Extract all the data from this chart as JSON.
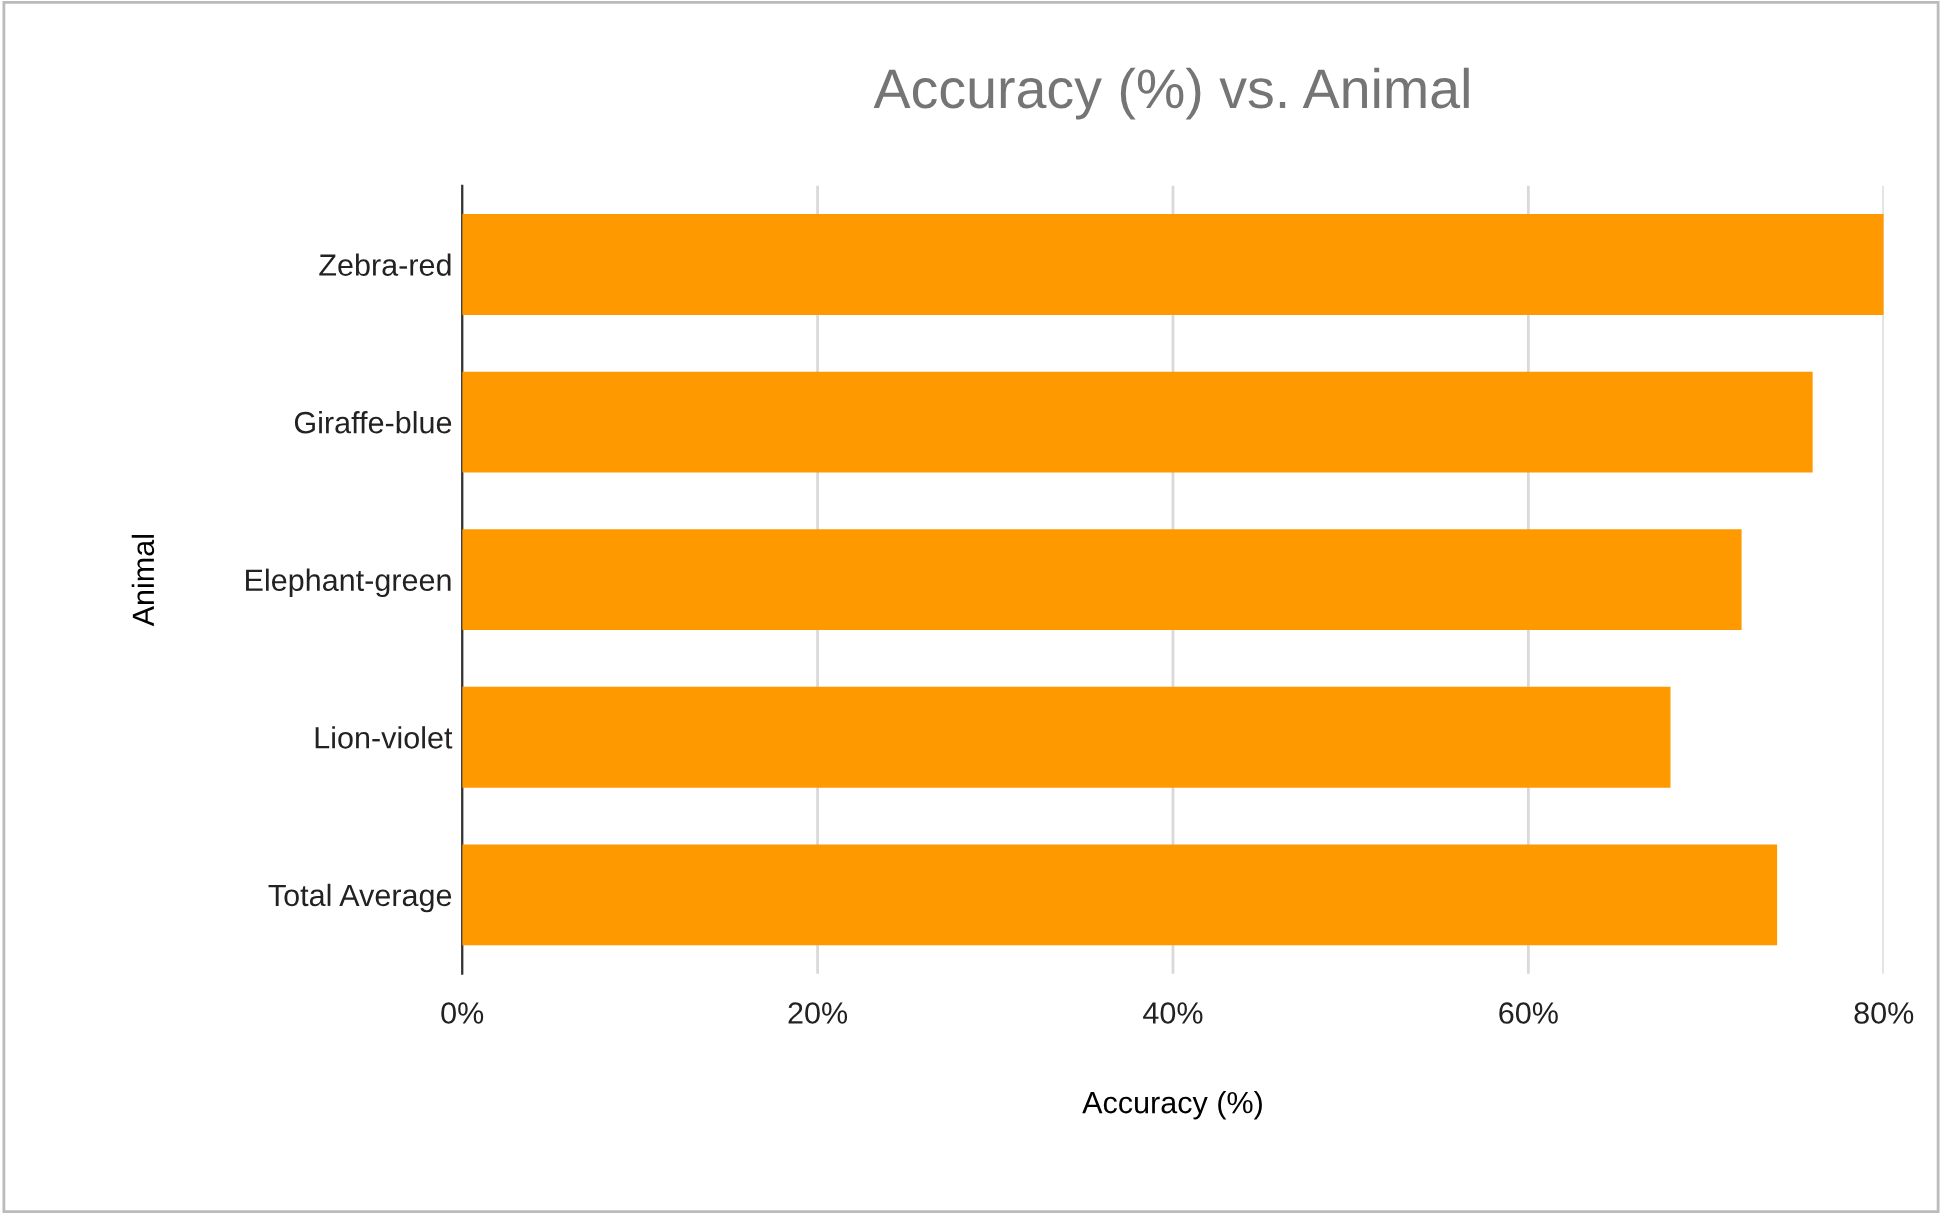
{
  "chart_data": {
    "type": "bar",
    "orientation": "horizontal",
    "title": "Accuracy (%) vs. Animal",
    "xlabel": "Accuracy (%)",
    "ylabel": "Animal",
    "categories": [
      "Zebra-red",
      "Giraffe-blue",
      "Elephant-green",
      "Lion-violet",
      "Total Average"
    ],
    "series": [
      {
        "color": "#ff9900",
        "values": [
          80,
          76,
          72,
          68,
          74
        ]
      }
    ],
    "xlim": [
      0,
      80
    ],
    "xticks": [
      {
        "value": 0,
        "label": "0%"
      },
      {
        "value": 20,
        "label": "20%"
      },
      {
        "value": 40,
        "label": "40%"
      },
      {
        "value": 60,
        "label": "60%"
      },
      {
        "value": 80,
        "label": "80%"
      }
    ],
    "grid": "x",
    "legend": false
  }
}
